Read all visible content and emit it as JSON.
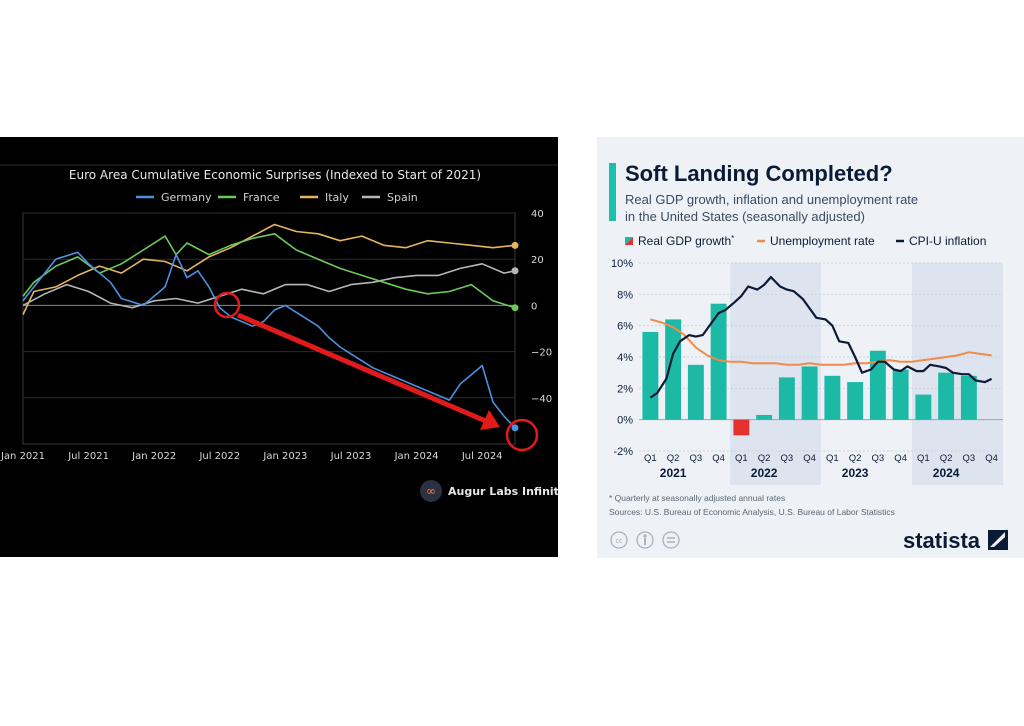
{
  "chart_data": [
    {
      "type": "line",
      "title": "Euro Area Cumulative Economic Surprises (Indexed to Start of 2021)",
      "x_ticks": [
        "Jan 2021",
        "Jul 2021",
        "Jan 2022",
        "Jul 2022",
        "Jan 2023",
        "Jul 2023",
        "Jan 2024",
        "Jul 2024"
      ],
      "y_ticks": [
        "40",
        "20",
        "0",
        "−20",
        "−40"
      ],
      "ylim": [
        -60,
        40
      ],
      "xlim": [
        "2021-01",
        "2024-10"
      ],
      "grid": "horizontal",
      "legend_position": "top",
      "brand": "Augur Labs Infinity",
      "series": [
        {
          "name": "Germany",
          "color": "#4f8fe0",
          "x": [
            "2021-01",
            "2021-02",
            "2021-04",
            "2021-06",
            "2021-07",
            "2021-09",
            "2021-10",
            "2021-12",
            "2022-02",
            "2022-03",
            "2022-04",
            "2022-05",
            "2022-06",
            "2022-07",
            "2022-08",
            "2022-10",
            "2022-11",
            "2022-12",
            "2023-01",
            "2023-02",
            "2023-04",
            "2023-05",
            "2023-06",
            "2023-07",
            "2023-09",
            "2023-11",
            "2024-01",
            "2024-03",
            "2024-04",
            "2024-05",
            "2024-06",
            "2024-07",
            "2024-08",
            "2024-09",
            "2024-10"
          ],
          "values": [
            2,
            8,
            20,
            23,
            18,
            10,
            3,
            0,
            8,
            22,
            12,
            15,
            8,
            -1,
            -5,
            -9,
            -7,
            -2,
            0,
            -3,
            -9,
            -14,
            -18,
            -21,
            -27,
            -31,
            -35,
            -39,
            -41,
            -34,
            -30,
            -26,
            -42,
            -48,
            -53
          ]
        },
        {
          "name": "France",
          "color": "#6ec85a",
          "x": [
            "2021-01",
            "2021-02",
            "2021-04",
            "2021-06",
            "2021-08",
            "2021-10",
            "2021-12",
            "2022-02",
            "2022-03",
            "2022-04",
            "2022-06",
            "2022-08",
            "2022-10",
            "2022-12",
            "2023-02",
            "2023-04",
            "2023-06",
            "2023-08",
            "2023-10",
            "2023-12",
            "2024-02",
            "2024-04",
            "2024-06",
            "2024-08",
            "2024-10"
          ],
          "values": [
            4,
            10,
            17,
            21,
            14,
            18,
            24,
            30,
            22,
            27,
            22,
            26,
            29,
            31,
            24,
            20,
            16,
            13,
            10,
            7,
            5,
            6,
            9,
            2,
            -1
          ]
        },
        {
          "name": "Italy",
          "color": "#e3b55e",
          "x": [
            "2021-01",
            "2021-02",
            "2021-04",
            "2021-06",
            "2021-08",
            "2021-10",
            "2021-12",
            "2022-02",
            "2022-04",
            "2022-06",
            "2022-08",
            "2022-10",
            "2022-12",
            "2023-02",
            "2023-04",
            "2023-06",
            "2023-08",
            "2023-10",
            "2023-12",
            "2024-02",
            "2024-04",
            "2024-06",
            "2024-08",
            "2024-10"
          ],
          "values": [
            -4,
            6,
            8,
            13,
            17,
            14,
            20,
            19,
            15,
            21,
            25,
            30,
            35,
            32,
            31,
            28,
            30,
            26,
            25,
            28,
            27,
            26,
            25,
            26
          ]
        },
        {
          "name": "Spain",
          "color": "#b7b7b7",
          "x": [
            "2021-01",
            "2021-03",
            "2021-05",
            "2021-07",
            "2021-09",
            "2021-11",
            "2022-01",
            "2022-03",
            "2022-05",
            "2022-07",
            "2022-09",
            "2022-11",
            "2023-01",
            "2023-03",
            "2023-05",
            "2023-07",
            "2023-09",
            "2023-11",
            "2024-01",
            "2024-03",
            "2024-05",
            "2024-07",
            "2024-09",
            "2024-10"
          ],
          "values": [
            0,
            5,
            9,
            6,
            1,
            -1,
            2,
            3,
            1,
            4,
            7,
            5,
            9,
            9,
            6,
            9,
            10,
            12,
            13,
            13,
            16,
            18,
            14,
            15
          ]
        }
      ]
    },
    {
      "type": "bar",
      "title": "Soft Landing Completed?",
      "subtitle_line1": "Real GDP growth, inflation and unemployment rate",
      "subtitle_line2": "in the United States (seasonally adjusted)",
      "legend": {
        "gdp": "Real GDP growth",
        "gdp_sup": "*",
        "unemployment": "Unemployment rate",
        "cpi": "CPI-U inflation"
      },
      "y_ticks": [
        "10%",
        "8%",
        "6%",
        "4%",
        "2%",
        "0%",
        "-2%"
      ],
      "ylim": [
        -2,
        10
      ],
      "quarters": [
        "Q1",
        "Q2",
        "Q3",
        "Q4",
        "Q1",
        "Q2",
        "Q3",
        "Q4",
        "Q1",
        "Q2",
        "Q3",
        "Q4",
        "Q1",
        "Q2",
        "Q3",
        "Q4"
      ],
      "years": [
        "2021",
        "2022",
        "2023",
        "2024"
      ],
      "gdp_growth": [
        5.6,
        6.4,
        3.5,
        7.4,
        -1.0,
        0.3,
        2.7,
        3.4,
        2.8,
        2.4,
        4.4,
        3.2,
        1.6,
        3.0,
        2.8,
        null
      ],
      "cpi_inflation_x": [
        0.0,
        0.3,
        0.7,
        1.0,
        1.3,
        1.7,
        2.0,
        2.3,
        2.7,
        3.0,
        3.3,
        3.7,
        4.0,
        4.3,
        4.7,
        5.0,
        5.3,
        5.7,
        6.0,
        6.3,
        6.7,
        7.0,
        7.3,
        7.7,
        8.0,
        8.3,
        8.7,
        9.0,
        9.3,
        9.7,
        10.0,
        10.3,
        10.7,
        11.0,
        11.3,
        11.7,
        12.0,
        12.3,
        12.7,
        13.0,
        13.3,
        13.7,
        14.0,
        14.3,
        14.7,
        15.0
      ],
      "cpi_inflation": [
        1.4,
        1.7,
        2.6,
        4.2,
        5.0,
        5.4,
        5.3,
        5.4,
        6.2,
        6.8,
        7.0,
        7.5,
        7.9,
        8.5,
        8.3,
        8.6,
        9.1,
        8.5,
        8.3,
        8.2,
        7.7,
        7.1,
        6.5,
        6.4,
        6.0,
        5.0,
        4.9,
        4.0,
        3.0,
        3.2,
        3.7,
        3.7,
        3.2,
        3.1,
        3.4,
        3.1,
        3.1,
        3.5,
        3.4,
        3.3,
        3.0,
        2.9,
        2.9,
        2.5,
        2.4,
        2.6
      ],
      "unemployment_x": [
        0.0,
        0.5,
        1.0,
        1.5,
        2.0,
        2.5,
        3.0,
        3.5,
        4.0,
        4.5,
        5.0,
        5.5,
        6.0,
        6.5,
        7.0,
        7.5,
        8.0,
        8.5,
        9.0,
        9.5,
        10.0,
        10.5,
        11.0,
        11.5,
        12.0,
        12.5,
        13.0,
        13.5,
        14.0,
        14.5,
        15.0
      ],
      "unemployment_rate": [
        6.4,
        6.2,
        5.9,
        5.4,
        4.6,
        4.1,
        3.8,
        3.7,
        3.7,
        3.6,
        3.6,
        3.6,
        3.5,
        3.5,
        3.6,
        3.5,
        3.5,
        3.5,
        3.6,
        3.6,
        3.7,
        3.8,
        3.7,
        3.7,
        3.8,
        3.9,
        4.0,
        4.1,
        4.3,
        4.2,
        4.1
      ],
      "shaded_years": [
        "2022",
        "2024"
      ],
      "colors": {
        "gdp_positive": "#1bb9a6",
        "gdp_negative": "#e4312d",
        "unemployment": "#f28b4a",
        "cpi": "#0c1b35",
        "title_accent": "#1bbfad"
      },
      "footnote": "* Quarterly at seasonally adjusted annual rates",
      "sources": "Sources: U.S. Bureau of Economic Analysis, U.S. Bureau of Labor Statistics",
      "brand": "statista",
      "license_icons": [
        "creative-commons-icon",
        "attribution-icon",
        "no-derivatives-icon"
      ]
    }
  ]
}
